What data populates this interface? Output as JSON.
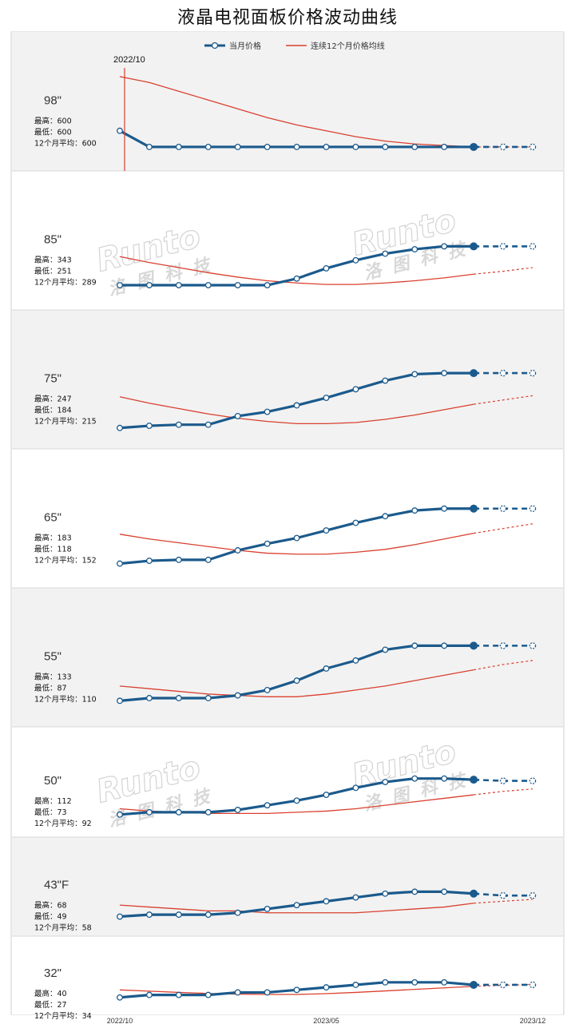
{
  "title": "液晶电视面板价格波动曲线",
  "legend": {
    "monthly": "当月价格",
    "avg12": "连续12个月价格均线"
  },
  "start_annotation": "2022/10",
  "watermark": {
    "brand": "Runto",
    "cn": "洛图科技"
  },
  "colors": {
    "monthly": "#1b5a8c",
    "avg12": "#d9402f",
    "band": "#f2f2f2"
  },
  "chart_data": {
    "type": "line",
    "x_labels": [
      "2022/10",
      "2023/05",
      "2023/12"
    ],
    "x": [
      "2022/10",
      "2022/11",
      "2022/12",
      "2023/01",
      "2023/02",
      "2023/03",
      "2023/04",
      "2023/05",
      "2023/06",
      "2023/07",
      "2023/08",
      "2023/09",
      "2023/10",
      "2023/11",
      "2023/12"
    ],
    "forecast_from_index": 12,
    "panels": [
      {
        "size": "98\"",
        "stats": [
          "最高：600",
          "最低：600",
          "12个月平均：600"
        ],
        "ylim": [
          595,
          650
        ],
        "monthly": [
          611,
          600,
          600,
          600,
          600,
          600,
          600,
          600,
          600,
          600,
          600,
          600,
          600,
          600,
          600
        ],
        "avg12": [
          648,
          644,
          638,
          632,
          626,
          620,
          615,
          611,
          607,
          604,
          602,
          601,
          600,
          600,
          600
        ]
      },
      {
        "size": "85\"",
        "stats": [
          "最高：343",
          "最低：251",
          "12个月平均：289"
        ],
        "ylim": [
          240,
          350
        ],
        "monthly": [
          251,
          251,
          251,
          251,
          251,
          251,
          260,
          274,
          285,
          294,
          300,
          304,
          304,
          304,
          304
        ],
        "avg12": [
          290,
          282,
          275,
          268,
          262,
          257,
          254,
          252,
          252,
          254,
          257,
          261,
          266,
          270,
          275
        ]
      },
      {
        "size": "75\"",
        "stats": [
          "最高：247",
          "最低：184",
          "12个月平均：215"
        ],
        "ylim": [
          180,
          255
        ],
        "monthly": [
          184,
          186,
          187,
          187,
          195,
          199,
          205,
          212,
          220,
          228,
          234,
          235,
          235,
          235,
          235
        ],
        "avg12": [
          213,
          207,
          202,
          197,
          193,
          190,
          188,
          188,
          189,
          192,
          196,
          201,
          206,
          210,
          214
        ]
      },
      {
        "size": "65\"",
        "stats": [
          "最高：183",
          "最低：118",
          "12个月平均：152"
        ],
        "ylim": [
          110,
          195
        ],
        "monthly": [
          118,
          121,
          122,
          122,
          132,
          139,
          145,
          153,
          161,
          168,
          174,
          176,
          176,
          176,
          176
        ],
        "avg12": [
          149,
          144,
          140,
          136,
          132,
          129,
          128,
          128,
          130,
          133,
          138,
          144,
          150,
          155,
          160
        ]
      },
      {
        "size": "55\"",
        "stats": [
          "最高：133",
          "最低：87",
          "12个月平均：110"
        ],
        "ylim": [
          80,
          140
        ],
        "monthly": [
          87,
          89,
          89,
          89,
          91,
          95,
          102,
          111,
          117,
          125,
          128,
          128,
          128,
          128,
          128
        ],
        "avg12": [
          98,
          96,
          94,
          92,
          91,
          90,
          90,
          92,
          95,
          98,
          102,
          106,
          110,
          114,
          117
        ]
      },
      {
        "size": "50\"",
        "stats": [
          "最高：112",
          "最低：73",
          "12个月平均：92"
        ],
        "ylim": [
          65,
          120
        ],
        "monthly": [
          73,
          75,
          75,
          75,
          77,
          81,
          85,
          90,
          96,
          101,
          104,
          104,
          103,
          102,
          102
        ],
        "avg12": [
          78,
          76,
          75,
          74,
          74,
          74,
          75,
          76,
          78,
          81,
          84,
          87,
          90,
          93,
          95
        ]
      },
      {
        "size": "43\"F",
        "stats": [
          "最高：68",
          "最低：49",
          "12个月平均：58"
        ],
        "ylim": [
          45,
          75
        ],
        "monthly": [
          49,
          50,
          50,
          50,
          51,
          53,
          55,
          57,
          59,
          61,
          62,
          62,
          61,
          60,
          60
        ],
        "avg12": [
          55,
          54,
          53,
          52,
          52,
          51,
          51,
          51,
          51,
          52,
          53,
          54,
          56,
          57,
          58
        ]
      },
      {
        "size": "32\"",
        "stats": [
          "最高：40",
          "最低：27",
          "12个月平均：34"
        ],
        "ylim": [
          24,
          42
        ],
        "monthly": [
          27,
          28,
          28,
          28,
          29,
          29,
          30,
          31,
          32,
          33,
          33,
          33,
          32,
          32,
          32
        ],
        "avg12": [
          30,
          29.5,
          29,
          28.6,
          28.3,
          28.2,
          28.2,
          28.5,
          29,
          29.6,
          30.2,
          30.8,
          31.4,
          31.8,
          32.2
        ]
      }
    ]
  }
}
